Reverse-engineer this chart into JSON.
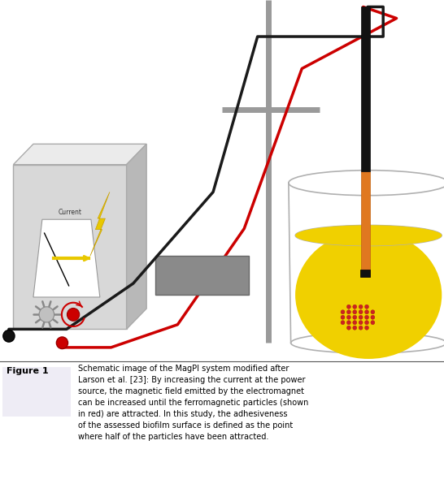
{
  "fig_width": 5.46,
  "fig_height": 6.17,
  "dpi": 100,
  "bg_color": "#ffffff",
  "figure_label": "Figure 1",
  "caption_line1": "Schematic image of the MagPI system modified after",
  "caption_line2": "Larson et al. [23]: By increasing the current at the power",
  "caption_line3": "source, the magnetic field emitted by the electromagnet",
  "caption_line4": "can be increased until the ferromagnetic particles (shown",
  "caption_line5": "in red) are attracted. In this study, the adhesiveness",
  "caption_line6": "of the assessed biofilm surface is defined as the point",
  "caption_line7": "where half of the particles have been attracted.",
  "box_front": "#d8d8d8",
  "box_top": "#ebebeb",
  "box_right": "#b8b8b8",
  "wire_red": "#cc0000",
  "wire_black": "#1a1a1a",
  "yellow": "#f0d000",
  "orange": "#e07820",
  "gray_em": "#8a8a8a",
  "gray_stand": "#9a9a9a",
  "red_particles": "#cc2222",
  "lightning": "#e8c800",
  "panel_white": "#ffffff",
  "sun_gray": "#999999",
  "knob_red": "#cc0000",
  "beaker_line": "#b0b0b0"
}
